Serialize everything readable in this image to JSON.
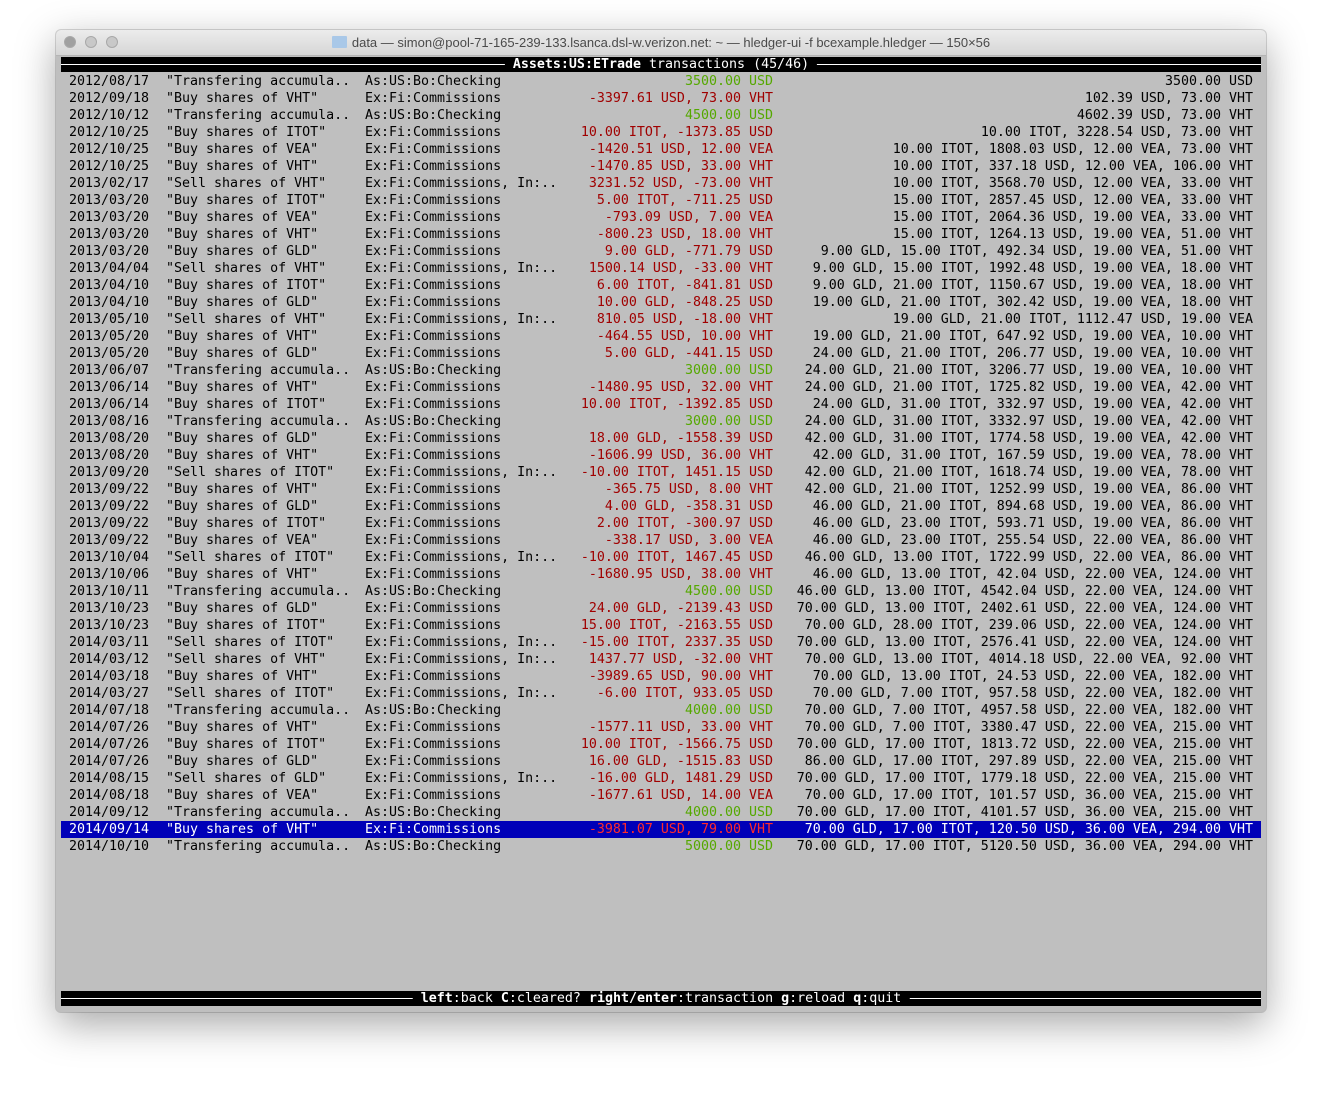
{
  "window": {
    "title": "data — simon@pool-71-165-239-133.lsanca.dsl-w.verizon.net: ~ — hledger-ui -f bcexample.hledger — 150×56",
    "folder_icon": "folder-icon"
  },
  "header": {
    "account": "Assets:US:ETrade",
    "suffix": "transactions (45/46)"
  },
  "colors": {
    "background": "#bfbfbf",
    "negative": "#a00000",
    "positive": "#55a800",
    "selection": "#0000b8"
  },
  "selected_index": 44,
  "rows": [
    {
      "date": "2012/08/17",
      "desc": "\"Transfering accumula..",
      "account": "As:US:Bo:Checking",
      "amount": "3500.00 USD",
      "amount_color": "green",
      "balance": "3500.00 USD"
    },
    {
      "date": "2012/09/18",
      "desc": "\"Buy shares of VHT\"",
      "account": "Ex:Fi:Commissions",
      "amount": "-3397.61 USD, 73.00 VHT",
      "amount_color": "red",
      "balance": "102.39 USD, 73.00 VHT"
    },
    {
      "date": "2012/10/12",
      "desc": "\"Transfering accumula..",
      "account": "As:US:Bo:Checking",
      "amount": "4500.00 USD",
      "amount_color": "green",
      "balance": "4602.39 USD, 73.00 VHT"
    },
    {
      "date": "2012/10/25",
      "desc": "\"Buy shares of ITOT\"",
      "account": "Ex:Fi:Commissions",
      "amount": "10.00 ITOT, -1373.85 USD",
      "amount_color": "red",
      "balance": "10.00 ITOT, 3228.54 USD, 73.00 VHT"
    },
    {
      "date": "2012/10/25",
      "desc": "\"Buy shares of VEA\"",
      "account": "Ex:Fi:Commissions",
      "amount": "-1420.51 USD, 12.00 VEA",
      "amount_color": "red",
      "balance": "10.00 ITOT, 1808.03 USD, 12.00 VEA, 73.00 VHT"
    },
    {
      "date": "2012/10/25",
      "desc": "\"Buy shares of VHT\"",
      "account": "Ex:Fi:Commissions",
      "amount": "-1470.85 USD, 33.00 VHT",
      "amount_color": "red",
      "balance": "10.00 ITOT, 337.18 USD, 12.00 VEA, 106.00 VHT"
    },
    {
      "date": "2013/02/17",
      "desc": "\"Sell shares of VHT\"",
      "account": "Ex:Fi:Commissions, In:..",
      "amount": "3231.52 USD, -73.00 VHT",
      "amount_color": "red",
      "balance": "10.00 ITOT, 3568.70 USD, 12.00 VEA, 33.00 VHT"
    },
    {
      "date": "2013/03/20",
      "desc": "\"Buy shares of ITOT\"",
      "account": "Ex:Fi:Commissions",
      "amount": "5.00 ITOT, -711.25 USD",
      "amount_color": "red",
      "balance": "15.00 ITOT, 2857.45 USD, 12.00 VEA, 33.00 VHT"
    },
    {
      "date": "2013/03/20",
      "desc": "\"Buy shares of VEA\"",
      "account": "Ex:Fi:Commissions",
      "amount": "-793.09 USD, 7.00 VEA",
      "amount_color": "red",
      "balance": "15.00 ITOT, 2064.36 USD, 19.00 VEA, 33.00 VHT"
    },
    {
      "date": "2013/03/20",
      "desc": "\"Buy shares of VHT\"",
      "account": "Ex:Fi:Commissions",
      "amount": "-800.23 USD, 18.00 VHT",
      "amount_color": "red",
      "balance": "15.00 ITOT, 1264.13 USD, 19.00 VEA, 51.00 VHT"
    },
    {
      "date": "2013/03/20",
      "desc": "\"Buy shares of GLD\"",
      "account": "Ex:Fi:Commissions",
      "amount": "9.00 GLD, -771.79 USD",
      "amount_color": "red",
      "balance": "9.00 GLD, 15.00 ITOT, 492.34 USD, 19.00 VEA, 51.00 VHT"
    },
    {
      "date": "2013/04/04",
      "desc": "\"Sell shares of VHT\"",
      "account": "Ex:Fi:Commissions, In:..",
      "amount": "1500.14 USD, -33.00 VHT",
      "amount_color": "red",
      "balance": "9.00 GLD, 15.00 ITOT, 1992.48 USD, 19.00 VEA, 18.00 VHT"
    },
    {
      "date": "2013/04/10",
      "desc": "\"Buy shares of ITOT\"",
      "account": "Ex:Fi:Commissions",
      "amount": "6.00 ITOT, -841.81 USD",
      "amount_color": "red",
      "balance": "9.00 GLD, 21.00 ITOT, 1150.67 USD, 19.00 VEA, 18.00 VHT"
    },
    {
      "date": "2013/04/10",
      "desc": "\"Buy shares of GLD\"",
      "account": "Ex:Fi:Commissions",
      "amount": "10.00 GLD, -848.25 USD",
      "amount_color": "red",
      "balance": "19.00 GLD, 21.00 ITOT, 302.42 USD, 19.00 VEA, 18.00 VHT"
    },
    {
      "date": "2013/05/10",
      "desc": "\"Sell shares of VHT\"",
      "account": "Ex:Fi:Commissions, In:..",
      "amount": "810.05 USD, -18.00 VHT",
      "amount_color": "red",
      "balance": "19.00 GLD, 21.00 ITOT, 1112.47 USD, 19.00 VEA"
    },
    {
      "date": "2013/05/20",
      "desc": "\"Buy shares of VHT\"",
      "account": "Ex:Fi:Commissions",
      "amount": "-464.55 USD, 10.00 VHT",
      "amount_color": "red",
      "balance": "19.00 GLD, 21.00 ITOT, 647.92 USD, 19.00 VEA, 10.00 VHT"
    },
    {
      "date": "2013/05/20",
      "desc": "\"Buy shares of GLD\"",
      "account": "Ex:Fi:Commissions",
      "amount": "5.00 GLD, -441.15 USD",
      "amount_color": "red",
      "balance": "24.00 GLD, 21.00 ITOT, 206.77 USD, 19.00 VEA, 10.00 VHT"
    },
    {
      "date": "2013/06/07",
      "desc": "\"Transfering accumula..",
      "account": "As:US:Bo:Checking",
      "amount": "3000.00 USD",
      "amount_color": "green",
      "balance": "24.00 GLD, 21.00 ITOT, 3206.77 USD, 19.00 VEA, 10.00 VHT"
    },
    {
      "date": "2013/06/14",
      "desc": "\"Buy shares of VHT\"",
      "account": "Ex:Fi:Commissions",
      "amount": "-1480.95 USD, 32.00 VHT",
      "amount_color": "red",
      "balance": "24.00 GLD, 21.00 ITOT, 1725.82 USD, 19.00 VEA, 42.00 VHT"
    },
    {
      "date": "2013/06/14",
      "desc": "\"Buy shares of ITOT\"",
      "account": "Ex:Fi:Commissions",
      "amount": "10.00 ITOT, -1392.85 USD",
      "amount_color": "red",
      "balance": "24.00 GLD, 31.00 ITOT, 332.97 USD, 19.00 VEA, 42.00 VHT"
    },
    {
      "date": "2013/08/16",
      "desc": "\"Transfering accumula..",
      "account": "As:US:Bo:Checking",
      "amount": "3000.00 USD",
      "amount_color": "green",
      "balance": "24.00 GLD, 31.00 ITOT, 3332.97 USD, 19.00 VEA, 42.00 VHT"
    },
    {
      "date": "2013/08/20",
      "desc": "\"Buy shares of GLD\"",
      "account": "Ex:Fi:Commissions",
      "amount": "18.00 GLD, -1558.39 USD",
      "amount_color": "red",
      "balance": "42.00 GLD, 31.00 ITOT, 1774.58 USD, 19.00 VEA, 42.00 VHT"
    },
    {
      "date": "2013/08/20",
      "desc": "\"Buy shares of VHT\"",
      "account": "Ex:Fi:Commissions",
      "amount": "-1606.99 USD, 36.00 VHT",
      "amount_color": "red",
      "balance": "42.00 GLD, 31.00 ITOT, 167.59 USD, 19.00 VEA, 78.00 VHT"
    },
    {
      "date": "2013/09/20",
      "desc": "\"Sell shares of ITOT\"",
      "account": "Ex:Fi:Commissions, In:..",
      "amount": "-10.00 ITOT, 1451.15 USD",
      "amount_color": "red",
      "balance": "42.00 GLD, 21.00 ITOT, 1618.74 USD, 19.00 VEA, 78.00 VHT"
    },
    {
      "date": "2013/09/22",
      "desc": "\"Buy shares of VHT\"",
      "account": "Ex:Fi:Commissions",
      "amount": "-365.75 USD, 8.00 VHT",
      "amount_color": "red",
      "balance": "42.00 GLD, 21.00 ITOT, 1252.99 USD, 19.00 VEA, 86.00 VHT"
    },
    {
      "date": "2013/09/22",
      "desc": "\"Buy shares of GLD\"",
      "account": "Ex:Fi:Commissions",
      "amount": "4.00 GLD, -358.31 USD",
      "amount_color": "red",
      "balance": "46.00 GLD, 21.00 ITOT, 894.68 USD, 19.00 VEA, 86.00 VHT"
    },
    {
      "date": "2013/09/22",
      "desc": "\"Buy shares of ITOT\"",
      "account": "Ex:Fi:Commissions",
      "amount": "2.00 ITOT, -300.97 USD",
      "amount_color": "red",
      "balance": "46.00 GLD, 23.00 ITOT, 593.71 USD, 19.00 VEA, 86.00 VHT"
    },
    {
      "date": "2013/09/22",
      "desc": "\"Buy shares of VEA\"",
      "account": "Ex:Fi:Commissions",
      "amount": "-338.17 USD, 3.00 VEA",
      "amount_color": "red",
      "balance": "46.00 GLD, 23.00 ITOT, 255.54 USD, 22.00 VEA, 86.00 VHT"
    },
    {
      "date": "2013/10/04",
      "desc": "\"Sell shares of ITOT\"",
      "account": "Ex:Fi:Commissions, In:..",
      "amount": "-10.00 ITOT, 1467.45 USD",
      "amount_color": "red",
      "balance": "46.00 GLD, 13.00 ITOT, 1722.99 USD, 22.00 VEA, 86.00 VHT"
    },
    {
      "date": "2013/10/06",
      "desc": "\"Buy shares of VHT\"",
      "account": "Ex:Fi:Commissions",
      "amount": "-1680.95 USD, 38.00 VHT",
      "amount_color": "red",
      "balance": "46.00 GLD, 13.00 ITOT, 42.04 USD, 22.00 VEA, 124.00 VHT"
    },
    {
      "date": "2013/10/11",
      "desc": "\"Transfering accumula..",
      "account": "As:US:Bo:Checking",
      "amount": "4500.00 USD",
      "amount_color": "green",
      "balance": "46.00 GLD, 13.00 ITOT, 4542.04 USD, 22.00 VEA, 124.00 VHT"
    },
    {
      "date": "2013/10/23",
      "desc": "\"Buy shares of GLD\"",
      "account": "Ex:Fi:Commissions",
      "amount": "24.00 GLD, -2139.43 USD",
      "amount_color": "red",
      "balance": "70.00 GLD, 13.00 ITOT, 2402.61 USD, 22.00 VEA, 124.00 VHT"
    },
    {
      "date": "2013/10/23",
      "desc": "\"Buy shares of ITOT\"",
      "account": "Ex:Fi:Commissions",
      "amount": "15.00 ITOT, -2163.55 USD",
      "amount_color": "red",
      "balance": "70.00 GLD, 28.00 ITOT, 239.06 USD, 22.00 VEA, 124.00 VHT"
    },
    {
      "date": "2014/03/11",
      "desc": "\"Sell shares of ITOT\"",
      "account": "Ex:Fi:Commissions, In:..",
      "amount": "-15.00 ITOT, 2337.35 USD",
      "amount_color": "red",
      "balance": "70.00 GLD, 13.00 ITOT, 2576.41 USD, 22.00 VEA, 124.00 VHT"
    },
    {
      "date": "2014/03/12",
      "desc": "\"Sell shares of VHT\"",
      "account": "Ex:Fi:Commissions, In:..",
      "amount": "1437.77 USD, -32.00 VHT",
      "amount_color": "red",
      "balance": "70.00 GLD, 13.00 ITOT, 4014.18 USD, 22.00 VEA, 92.00 VHT"
    },
    {
      "date": "2014/03/18",
      "desc": "\"Buy shares of VHT\"",
      "account": "Ex:Fi:Commissions",
      "amount": "-3989.65 USD, 90.00 VHT",
      "amount_color": "red",
      "balance": "70.00 GLD, 13.00 ITOT, 24.53 USD, 22.00 VEA, 182.00 VHT"
    },
    {
      "date": "2014/03/27",
      "desc": "\"Sell shares of ITOT\"",
      "account": "Ex:Fi:Commissions, In:..",
      "amount": "-6.00 ITOT, 933.05 USD",
      "amount_color": "red",
      "balance": "70.00 GLD, 7.00 ITOT, 957.58 USD, 22.00 VEA, 182.00 VHT"
    },
    {
      "date": "2014/07/18",
      "desc": "\"Transfering accumula..",
      "account": "As:US:Bo:Checking",
      "amount": "4000.00 USD",
      "amount_color": "green",
      "balance": "70.00 GLD, 7.00 ITOT, 4957.58 USD, 22.00 VEA, 182.00 VHT"
    },
    {
      "date": "2014/07/26",
      "desc": "\"Buy shares of VHT\"",
      "account": "Ex:Fi:Commissions",
      "amount": "-1577.11 USD, 33.00 VHT",
      "amount_color": "red",
      "balance": "70.00 GLD, 7.00 ITOT, 3380.47 USD, 22.00 VEA, 215.00 VHT"
    },
    {
      "date": "2014/07/26",
      "desc": "\"Buy shares of ITOT\"",
      "account": "Ex:Fi:Commissions",
      "amount": "10.00 ITOT, -1566.75 USD",
      "amount_color": "red",
      "balance": "70.00 GLD, 17.00 ITOT, 1813.72 USD, 22.00 VEA, 215.00 VHT"
    },
    {
      "date": "2014/07/26",
      "desc": "\"Buy shares of GLD\"",
      "account": "Ex:Fi:Commissions",
      "amount": "16.00 GLD, -1515.83 USD",
      "amount_color": "red",
      "balance": "86.00 GLD, 17.00 ITOT, 297.89 USD, 22.00 VEA, 215.00 VHT"
    },
    {
      "date": "2014/08/15",
      "desc": "\"Sell shares of GLD\"",
      "account": "Ex:Fi:Commissions, In:..",
      "amount": "-16.00 GLD, 1481.29 USD",
      "amount_color": "red",
      "balance": "70.00 GLD, 17.00 ITOT, 1779.18 USD, 22.00 VEA, 215.00 VHT"
    },
    {
      "date": "2014/08/18",
      "desc": "\"Buy shares of VEA\"",
      "account": "Ex:Fi:Commissions",
      "amount": "-1677.61 USD, 14.00 VEA",
      "amount_color": "red",
      "balance": "70.00 GLD, 17.00 ITOT, 101.57 USD, 36.00 VEA, 215.00 VHT"
    },
    {
      "date": "2014/09/12",
      "desc": "\"Transfering accumula..",
      "account": "As:US:Bo:Checking",
      "amount": "4000.00 USD",
      "amount_color": "green",
      "balance": "70.00 GLD, 17.00 ITOT, 4101.57 USD, 36.00 VEA, 215.00 VHT"
    },
    {
      "date": "2014/09/14",
      "desc": "\"Buy shares of VHT\"",
      "account": "Ex:Fi:Commissions",
      "amount": "-3981.07 USD, 79.00 VHT",
      "amount_color": "red",
      "balance": "70.00 GLD, 17.00 ITOT, 120.50 USD, 36.00 VEA, 294.00 VHT"
    },
    {
      "date": "2014/10/10",
      "desc": "\"Transfering accumula..",
      "account": "As:US:Bo:Checking",
      "amount": "5000.00 USD",
      "amount_color": "green",
      "balance": "70.00 GLD, 17.00 ITOT, 5120.50 USD, 36.00 VEA, 294.00 VHT"
    }
  ],
  "footer": {
    "keys": [
      {
        "key": "left",
        "action": "back"
      },
      {
        "key": "C",
        "action": "cleared?"
      },
      {
        "key": "right/enter",
        "action": "transaction"
      },
      {
        "key": "g",
        "action": "reload"
      },
      {
        "key": "q",
        "action": "quit"
      }
    ]
  }
}
